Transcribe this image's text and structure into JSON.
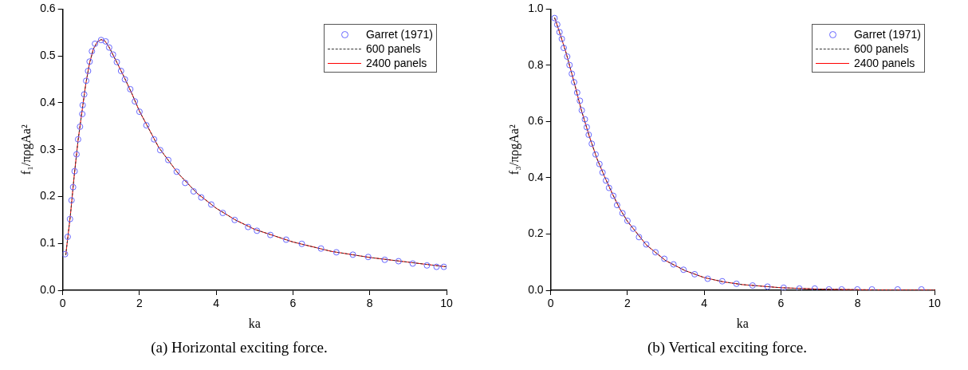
{
  "chart_data": [
    {
      "type": "line",
      "title": "(a) Horizontal exciting force.",
      "xlabel": "ka",
      "ylabel": "f₁/πρgAa²",
      "xlim": [
        0,
        10
      ],
      "xticks": [
        0,
        2,
        4,
        6,
        8,
        10
      ],
      "ylim": [
        0,
        0.6
      ],
      "yticks": [
        {
          "value": 0,
          "label": "0.0"
        },
        {
          "value": 0.1,
          "label": "0.1"
        },
        {
          "value": 0.2,
          "label": "0.2"
        },
        {
          "value": 0.3,
          "label": "0.3"
        },
        {
          "value": 0.4,
          "label": "0.4"
        },
        {
          "value": 0.5,
          "label": "0.5"
        },
        {
          "value": 0.6,
          "label": "0.6"
        }
      ],
      "grid": false,
      "legend": "top right",
      "series": [
        {
          "name": "Garret (1971)",
          "type": "scatter",
          "marker": "circle",
          "color": "#6666ff",
          "x": [
            0.06,
            0.13,
            0.19,
            0.23,
            0.27,
            0.31,
            0.36,
            0.4,
            0.45,
            0.51,
            0.52,
            0.56,
            0.61,
            0.66,
            0.7,
            0.76,
            0.84,
            1.0,
            1.12,
            1.21,
            1.31,
            1.41,
            1.52,
            1.62,
            1.76,
            1.88,
            2.0,
            2.18,
            2.38,
            2.54,
            2.75,
            2.97,
            3.19,
            3.41,
            3.61,
            3.87,
            4.17,
            4.48,
            4.83,
            5.06,
            5.41,
            5.82,
            6.23,
            6.73,
            7.13,
            7.56,
            7.96,
            8.39,
            8.75,
            9.12,
            9.49,
            9.74,
            9.93
          ],
          "values": [
            0.077,
            0.114,
            0.152,
            0.192,
            0.22,
            0.254,
            0.29,
            0.322,
            0.349,
            0.376,
            0.395,
            0.418,
            0.447,
            0.468,
            0.488,
            0.51,
            0.526,
            0.534,
            0.531,
            0.518,
            0.503,
            0.487,
            0.468,
            0.45,
            0.429,
            0.403,
            0.381,
            0.352,
            0.322,
            0.299,
            0.278,
            0.253,
            0.229,
            0.211,
            0.198,
            0.183,
            0.165,
            0.15,
            0.135,
            0.127,
            0.118,
            0.108,
            0.099,
            0.089,
            0.081,
            0.076,
            0.071,
            0.065,
            0.062,
            0.057,
            0.053,
            0.05,
            0.05
          ]
        },
        {
          "name": "600 panels",
          "type": "line",
          "line_style": "dashed",
          "color": "#333333",
          "x": [
            0.08,
            0.1,
            0.2,
            0.3,
            0.4,
            0.5,
            0.6,
            0.7,
            0.8,
            0.9,
            1.0,
            1.1,
            1.2,
            1.4,
            1.6,
            1.8,
            2.0,
            2.5,
            3,
            3.5,
            4,
            4.5,
            5,
            6,
            7,
            8,
            9,
            10
          ],
          "values": [
            0.075,
            0.09,
            0.16,
            0.245,
            0.32,
            0.38,
            0.44,
            0.485,
            0.515,
            0.53,
            0.535,
            0.532,
            0.52,
            0.488,
            0.455,
            0.42,
            0.382,
            0.305,
            0.25,
            0.207,
            0.175,
            0.15,
            0.13,
            0.103,
            0.083,
            0.07,
            0.06,
            0.05
          ]
        },
        {
          "name": "2400 panels",
          "type": "line",
          "line_style": "solid",
          "color": "#ff0000",
          "x": [
            0.08,
            0.1,
            0.2,
            0.3,
            0.4,
            0.5,
            0.6,
            0.7,
            0.8,
            0.9,
            1.0,
            1.1,
            1.2,
            1.4,
            1.6,
            1.8,
            2.0,
            2.5,
            3,
            3.5,
            4,
            4.5,
            5,
            6,
            7,
            8,
            9,
            10
          ],
          "values": [
            0.075,
            0.09,
            0.16,
            0.245,
            0.32,
            0.38,
            0.44,
            0.485,
            0.515,
            0.53,
            0.535,
            0.532,
            0.52,
            0.488,
            0.455,
            0.42,
            0.382,
            0.305,
            0.25,
            0.207,
            0.175,
            0.15,
            0.13,
            0.103,
            0.083,
            0.07,
            0.06,
            0.05
          ]
        }
      ]
    },
    {
      "type": "line",
      "title": "(b) Vertical exciting force.",
      "xlabel": "ka",
      "ylabel": "f₃/πρgAa²",
      "xlim": [
        0,
        10
      ],
      "xticks": [
        0,
        2,
        4,
        6,
        8,
        10
      ],
      "ylim": [
        0,
        1
      ],
      "yticks": [
        {
          "value": 0,
          "label": "0.0"
        },
        {
          "value": 0.2,
          "label": "0.2"
        },
        {
          "value": 0.4,
          "label": "0.4"
        },
        {
          "value": 0.6,
          "label": "0.6"
        },
        {
          "value": 0.8,
          "label": "0.8"
        },
        {
          "value": 1,
          "label": "1.0"
        }
      ],
      "grid": false,
      "legend": "top right",
      "series": [
        {
          "name": "Garret (1971)",
          "type": "scatter",
          "marker": "circle",
          "color": "#6666ff",
          "x": [
            0.1,
            0.17,
            0.23,
            0.29,
            0.34,
            0.43,
            0.49,
            0.55,
            0.61,
            0.69,
            0.76,
            0.81,
            0.89,
            0.94,
            0.99,
            1.07,
            1.17,
            1.27,
            1.35,
            1.44,
            1.52,
            1.63,
            1.73,
            1.87,
            2.0,
            2.15,
            2.3,
            2.49,
            2.73,
            2.96,
            3.2,
            3.46,
            3.75,
            4.09,
            4.47,
            4.84,
            5.26,
            5.65,
            6.07,
            6.48,
            6.88,
            7.25,
            7.58,
            7.99,
            8.37,
            9.04,
            9.66
          ],
          "values": [
            0.968,
            0.945,
            0.918,
            0.894,
            0.862,
            0.831,
            0.801,
            0.77,
            0.74,
            0.703,
            0.674,
            0.64,
            0.608,
            0.58,
            0.553,
            0.521,
            0.483,
            0.449,
            0.419,
            0.39,
            0.364,
            0.336,
            0.303,
            0.274,
            0.247,
            0.219,
            0.189,
            0.163,
            0.135,
            0.112,
            0.092,
            0.073,
            0.057,
            0.041,
            0.032,
            0.023,
            0.017,
            0.013,
            0.009,
            0.006,
            0.006,
            0.003,
            0.003,
            0.003,
            0.003,
            0.003,
            0.003
          ]
        },
        {
          "name": "600 panels",
          "type": "line",
          "line_style": "dashed",
          "color": "#333333",
          "x": [
            0.1,
            0.2,
            0.4,
            0.6,
            0.8,
            1,
            1.2,
            1.4,
            1.6,
            1.8,
            2,
            2.5,
            3,
            3.5,
            4,
            4.5,
            5,
            6,
            7,
            8,
            9,
            10
          ],
          "values": [
            0.97,
            0.93,
            0.845,
            0.745,
            0.64,
            0.55,
            0.47,
            0.405,
            0.345,
            0.29,
            0.245,
            0.16,
            0.105,
            0.07,
            0.045,
            0.03,
            0.02,
            0.009,
            0.004,
            0.002,
            0.001,
            0.001
          ]
        },
        {
          "name": "2400 panels",
          "type": "line",
          "line_style": "solid",
          "color": "#ff0000",
          "x": [
            0.1,
            0.2,
            0.4,
            0.6,
            0.8,
            1,
            1.2,
            1.4,
            1.6,
            1.8,
            2,
            2.5,
            3,
            3.5,
            4,
            4.5,
            5,
            6,
            7,
            8,
            9,
            10
          ],
          "values": [
            0.97,
            0.93,
            0.845,
            0.745,
            0.64,
            0.55,
            0.47,
            0.405,
            0.345,
            0.29,
            0.245,
            0.16,
            0.105,
            0.07,
            0.045,
            0.03,
            0.02,
            0.009,
            0.004,
            0.002,
            0.001,
            0.001
          ]
        }
      ]
    }
  ]
}
